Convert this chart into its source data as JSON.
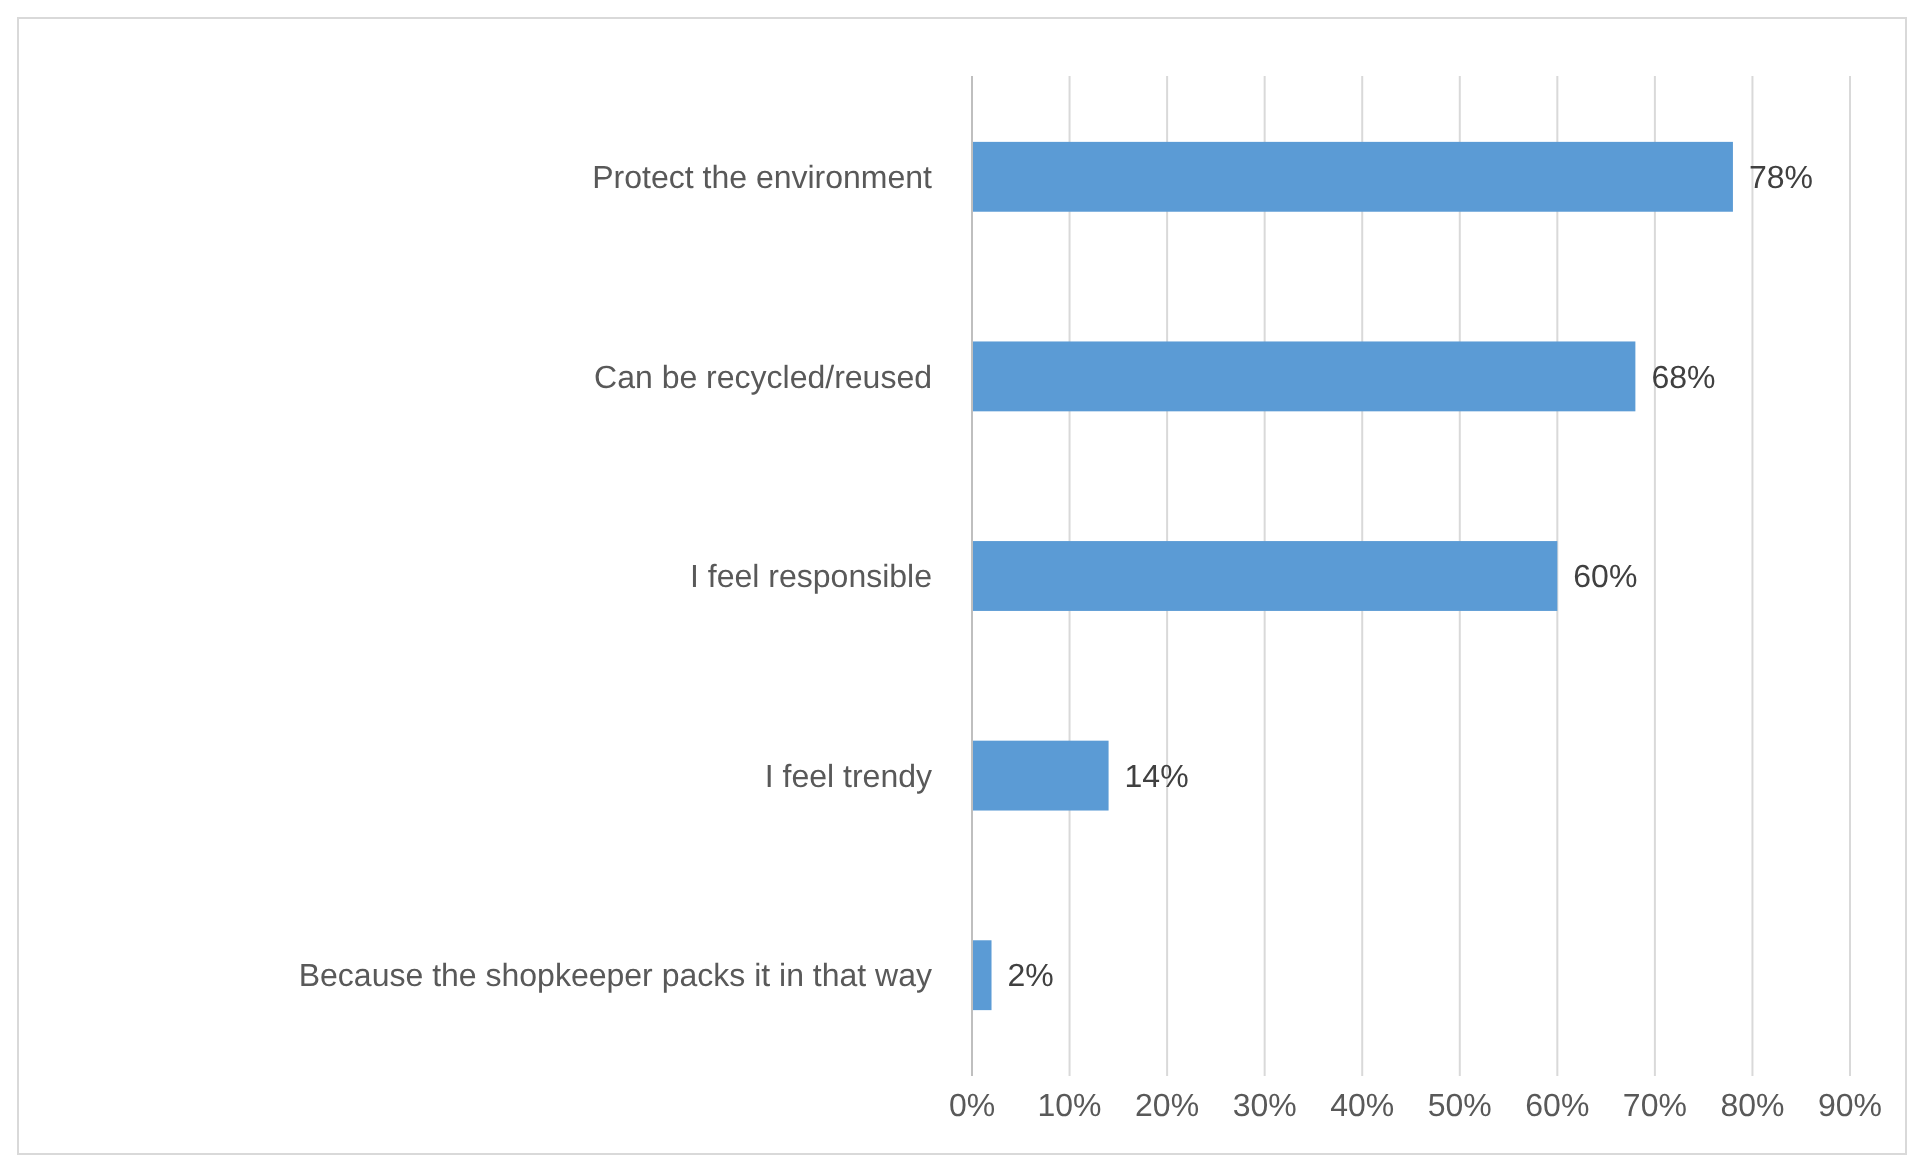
{
  "chart_data": {
    "type": "bar",
    "orientation": "horizontal",
    "categories": [
      "Protect the environment",
      "Can be recycled/reused",
      "I feel responsible",
      "I feel trendy",
      "Because the shopkeeper packs it in that way"
    ],
    "values": [
      78,
      68,
      60,
      14,
      2
    ],
    "color": "#5b9bd5",
    "value_labels": [
      "78%",
      "68%",
      "60%",
      "14%",
      "2%"
    ],
    "xlim": [
      0,
      90
    ],
    "xticks": [
      {
        "value": 0,
        "label": "0%"
      },
      {
        "value": 10,
        "label": "10%"
      },
      {
        "value": 20,
        "label": "20%"
      },
      {
        "value": 30,
        "label": "30%"
      },
      {
        "value": 40,
        "label": "40%"
      },
      {
        "value": 50,
        "label": "50%"
      },
      {
        "value": 60,
        "label": "60%"
      },
      {
        "value": 70,
        "label": "70%"
      },
      {
        "value": 80,
        "label": "80%"
      },
      {
        "value": 90,
        "label": "90%"
      }
    ],
    "grid": "x"
  }
}
